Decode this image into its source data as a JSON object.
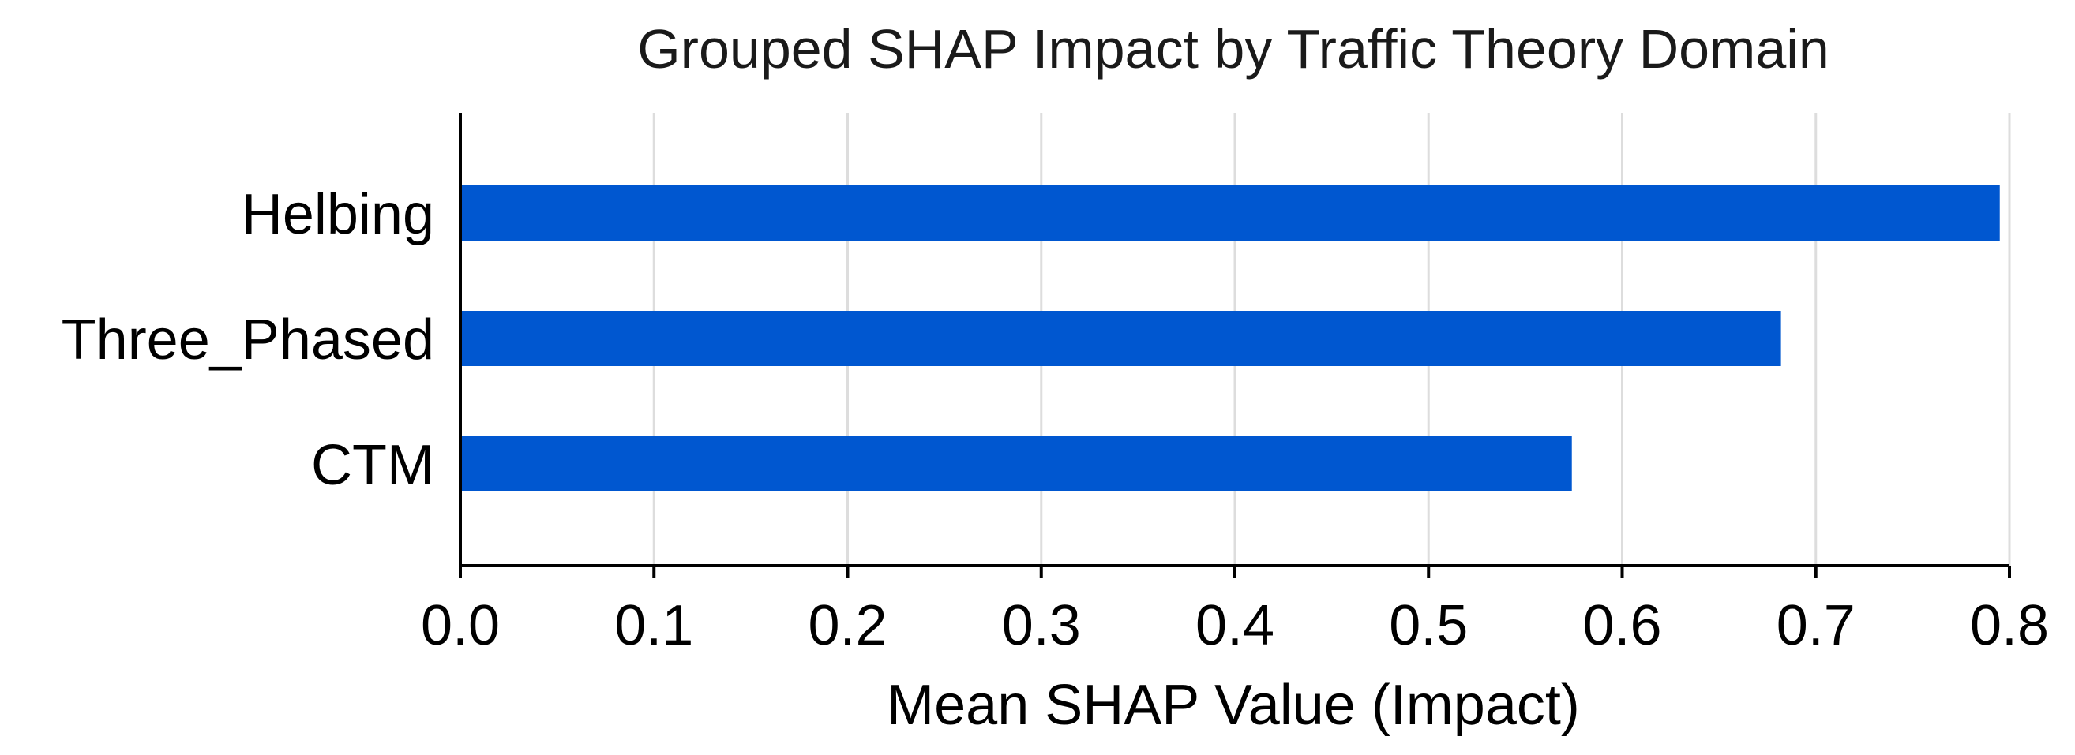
{
  "chart_data": {
    "type": "bar",
    "orientation": "horizontal",
    "title": "Grouped SHAP Impact by Traffic Theory Domain",
    "xlabel": "Mean SHAP Value (Impact)",
    "ylabel": "",
    "categories": [
      "Helbing",
      "Three_Phased",
      "CTM"
    ],
    "values": [
      0.795,
      0.682,
      0.574
    ],
    "xlim": [
      0.0,
      0.8
    ],
    "xticks": [
      0.0,
      0.1,
      0.2,
      0.3,
      0.4,
      0.5,
      0.6,
      0.7,
      0.8
    ],
    "xtick_labels": [
      "0.0",
      "0.1",
      "0.2",
      "0.3",
      "0.4",
      "0.5",
      "0.6",
      "0.7",
      "0.8"
    ],
    "grid": "vertical",
    "bar_color": "#0057d0"
  }
}
